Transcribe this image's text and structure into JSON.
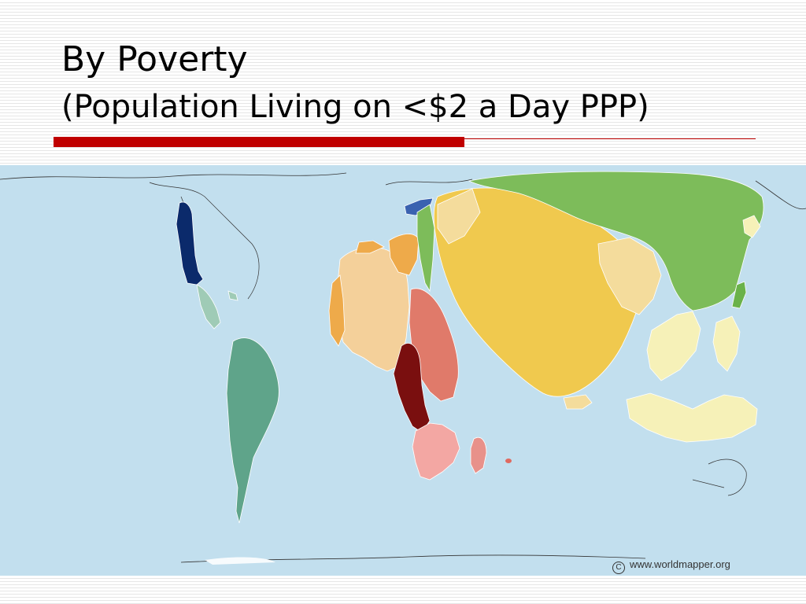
{
  "slide": {
    "title": "By Poverty",
    "subtitle": "(Population Living on <$2 a Day PPP)"
  },
  "map": {
    "credit_text": "www.worldmapper.org",
    "copyright_symbol": "C",
    "colors": {
      "ocean": "#c2dfee",
      "north_america": "#0b2a6b",
      "central_america": "#9fcbb6",
      "south_america": "#5fa48a",
      "north_africa": "#f4d09a",
      "west_africa": "#eeaa4a",
      "east_africa": "#e07a6a",
      "central_africa": "#7a0f0f",
      "southern_africa": "#f3a7a3",
      "madagascar": "#e8918a",
      "south_asia": "#f0c94e",
      "south_asia_light": "#f4dc9c",
      "east_asia": "#7dbc5a",
      "southeast_asia": "#f6f1b8",
      "japan": "#6ab24a",
      "europe": "#3a62b0"
    }
  }
}
